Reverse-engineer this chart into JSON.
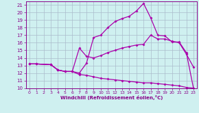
{
  "xlabel": "Windchill (Refroidissement éolien,°C)",
  "background_color": "#cff0f0",
  "line_color": "#aa00aa",
  "grid_color": "#aabbcc",
  "xlim": [
    -0.5,
    23.5
  ],
  "ylim": [
    10,
    21.5
  ],
  "xticks": [
    0,
    1,
    2,
    3,
    4,
    5,
    6,
    7,
    8,
    9,
    10,
    11,
    12,
    13,
    14,
    15,
    16,
    17,
    18,
    19,
    20,
    21,
    22,
    23
  ],
  "yticks": [
    10,
    11,
    12,
    13,
    14,
    15,
    16,
    17,
    18,
    19,
    20,
    21
  ],
  "line1_x": [
    0,
    1,
    3,
    4,
    5,
    6,
    7,
    8,
    9,
    10,
    11,
    12,
    13,
    14,
    15,
    16,
    17,
    18,
    19,
    20,
    21,
    22,
    23
  ],
  "line1_y": [
    13.2,
    13.2,
    13.1,
    12.4,
    12.2,
    12.2,
    11.8,
    11.7,
    11.5,
    11.3,
    11.2,
    11.1,
    11.0,
    10.9,
    10.8,
    10.7,
    10.7,
    10.6,
    10.5,
    10.4,
    10.3,
    10.1,
    10.0
  ],
  "line2_x": [
    0,
    1,
    3,
    4,
    5,
    6,
    7,
    8,
    9,
    10,
    11,
    12,
    13,
    14,
    15,
    16,
    17,
    18,
    19,
    20,
    21,
    22,
    23
  ],
  "line2_y": [
    13.2,
    13.2,
    13.1,
    12.4,
    12.2,
    12.2,
    15.3,
    14.2,
    14.0,
    14.3,
    14.7,
    15.0,
    15.3,
    15.5,
    15.7,
    15.8,
    17.0,
    16.5,
    16.5,
    16.2,
    16.0,
    14.5,
    12.8
  ],
  "line3_x": [
    0,
    1,
    3,
    4,
    5,
    6,
    7,
    8,
    9,
    10,
    11,
    12,
    13,
    14,
    15,
    16,
    17,
    18,
    19,
    20,
    21,
    22,
    23
  ],
  "line3_y": [
    13.2,
    13.2,
    13.1,
    12.4,
    12.2,
    12.2,
    12.0,
    13.3,
    16.7,
    17.0,
    18.0,
    18.8,
    19.2,
    19.5,
    20.2,
    21.2,
    19.3,
    17.0,
    16.9,
    16.1,
    16.1,
    14.7,
    10.0
  ],
  "marker": "D",
  "marker_size": 2.0,
  "linewidth": 0.9
}
